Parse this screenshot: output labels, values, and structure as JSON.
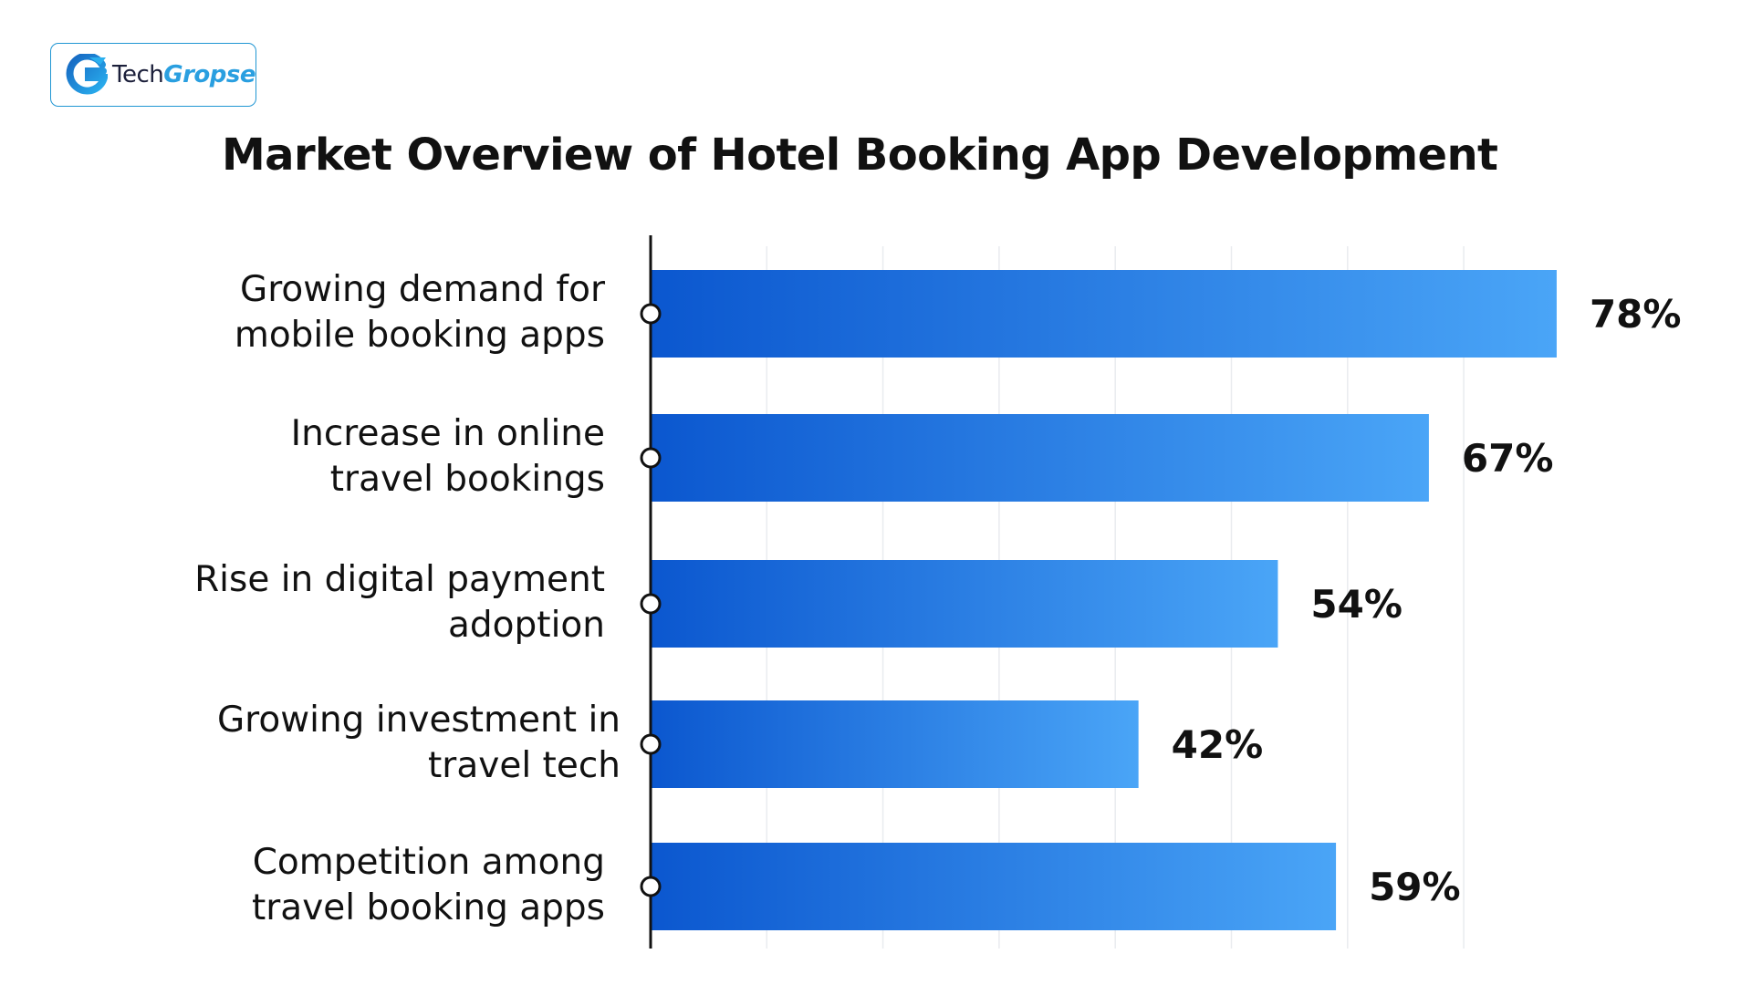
{
  "brand": {
    "logo_tech": "Tech",
    "logo_gropse": "Gropse",
    "accent": "#2196d3"
  },
  "chart_data": {
    "type": "bar",
    "orientation": "horizontal",
    "title": "Market Overview of Hotel Booking App Development",
    "xlabel": "",
    "ylabel": "",
    "categories": [
      [
        "Growing demand for",
        "mobile booking apps"
      ],
      [
        "Increase in online",
        "travel bookings"
      ],
      [
        "Rise in digital payment",
        "adoption"
      ],
      [
        "Growing investment in",
        "travel tech"
      ],
      [
        "Competition among",
        "travel booking apps"
      ]
    ],
    "values": [
      78,
      67,
      54,
      42,
      59
    ],
    "value_labels": [
      "78%",
      "67%",
      "54%",
      "42%",
      "59%"
    ],
    "xlim": [
      0,
      100
    ],
    "grid": true,
    "legend": "none",
    "colors": {
      "bar_start": "#0b57cf",
      "bar_end": "#4aa5f7",
      "axis": "#111111",
      "grid": "#e9ecef"
    }
  }
}
